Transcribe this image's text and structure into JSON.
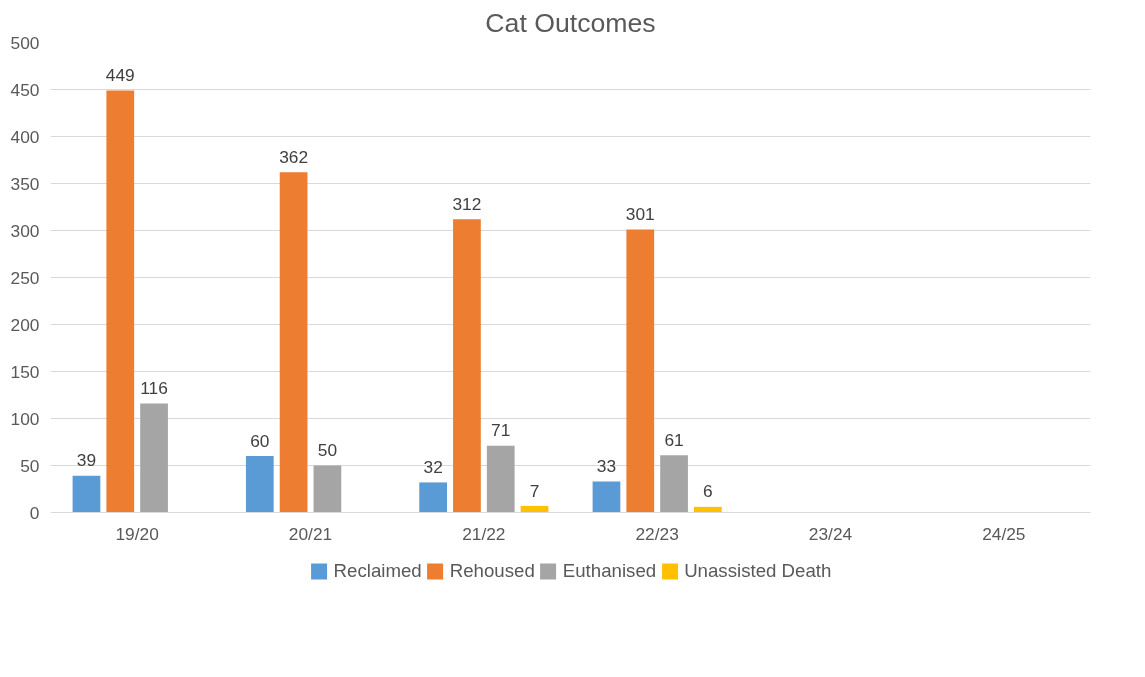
{
  "chart_data": {
    "type": "bar",
    "title": "Cat Outcomes",
    "categories": [
      "19/20",
      "20/21",
      "21/22",
      "22/23",
      "23/24",
      "24/25"
    ],
    "series": [
      {
        "name": "Reclaimed",
        "color": "#5b9bd5",
        "values": [
          39,
          60,
          32,
          33,
          null,
          null
        ]
      },
      {
        "name": "Rehoused",
        "color": "#ed7d31",
        "values": [
          449,
          362,
          312,
          301,
          null,
          null
        ]
      },
      {
        "name": "Euthanised",
        "color": "#a5a5a5",
        "values": [
          116,
          50,
          71,
          61,
          null,
          null
        ]
      },
      {
        "name": "Unassisted Death",
        "color": "#ffc000",
        "values": [
          null,
          null,
          7,
          6,
          null,
          null
        ]
      }
    ],
    "ylim": [
      0,
      500
    ],
    "yticks": [
      0,
      50,
      100,
      150,
      200,
      250,
      300,
      350,
      400,
      450,
      500
    ],
    "grid": "y",
    "legend": "bottom",
    "data_labels": true
  }
}
